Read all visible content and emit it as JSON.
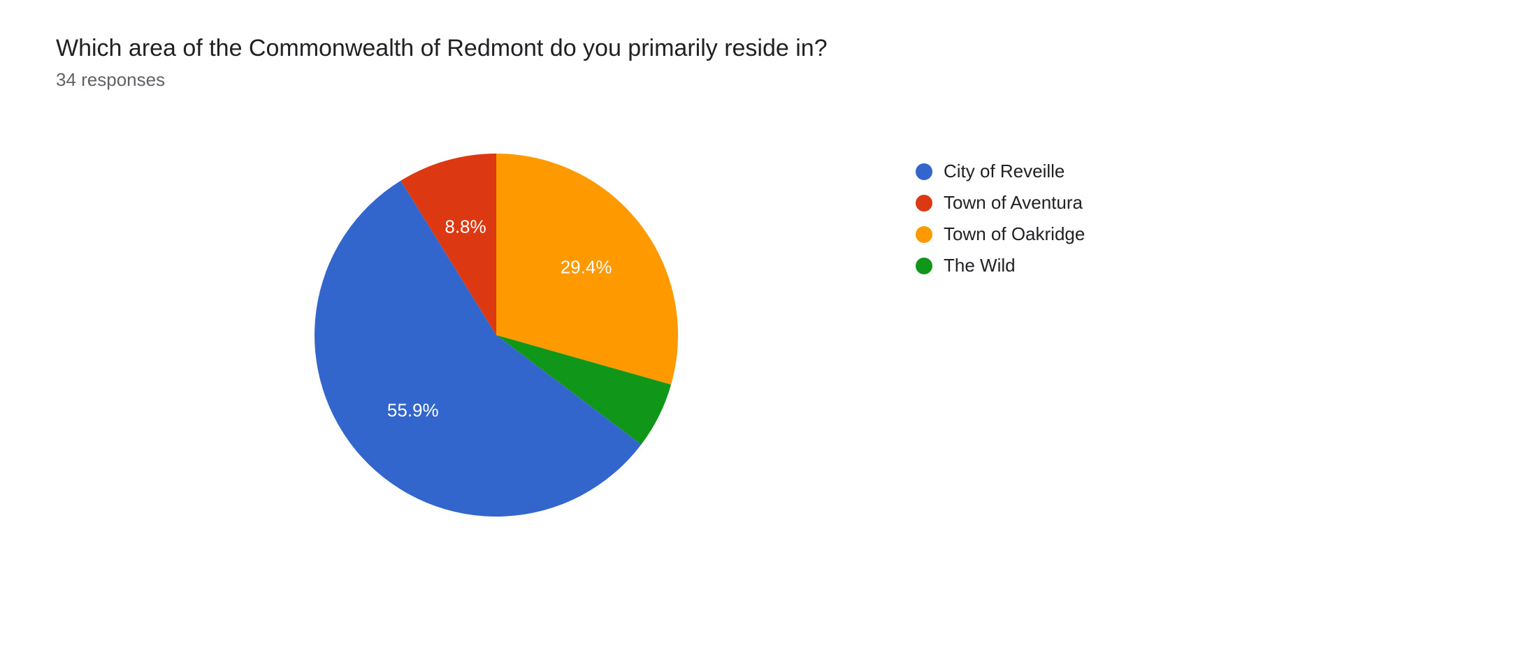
{
  "title": "Which area of the Commonwealth of Redmont do you primarily reside in?",
  "subtitle": "34 responses",
  "chart": {
    "type": "pie",
    "background_color": "#ffffff",
    "radius": 260,
    "label_fontsize": 26,
    "label_color": "#ffffff",
    "slices": [
      {
        "name": "City of Reveille",
        "value": 55.9,
        "color": "#3366cc",
        "label": "55.9%",
        "show_label": true
      },
      {
        "name": "Town of Aventura",
        "value": 8.8,
        "color": "#dc3912",
        "label": "8.8%",
        "show_label": true
      },
      {
        "name": "Town of Oakridge",
        "value": 29.4,
        "color": "#ff9900",
        "label": "29.4%",
        "show_label": true
      },
      {
        "name": "The Wild",
        "value": 5.9,
        "color": "#109618",
        "label": "5.9%",
        "show_label": false
      }
    ]
  },
  "legend": {
    "fontsize": 26,
    "text_color": "#202124",
    "dot_size": 24,
    "items": [
      {
        "label": "City of Reveille",
        "color": "#3366cc"
      },
      {
        "label": "Town of Aventura",
        "color": "#dc3912"
      },
      {
        "label": "Town of Oakridge",
        "color": "#ff9900"
      },
      {
        "label": "The Wild",
        "color": "#109618"
      }
    ]
  }
}
